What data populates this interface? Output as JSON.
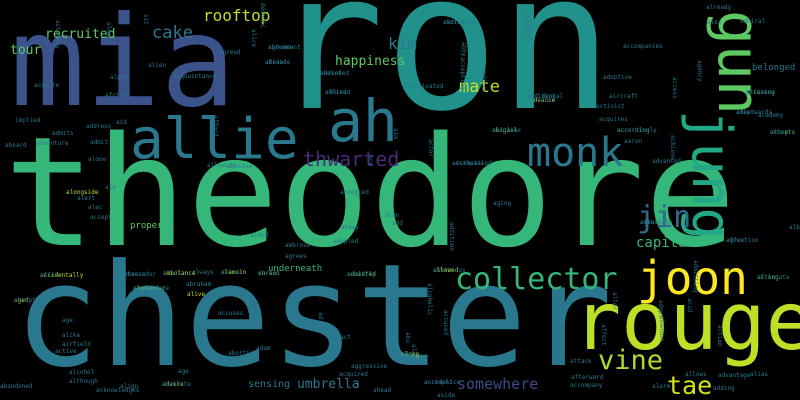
{
  "words": [
    {
      "text": "ron",
      "color": "#21918c",
      "tier": "xxl"
    },
    {
      "text": "theodore",
      "color": "#35b779",
      "tier": "xxl"
    },
    {
      "text": "chester",
      "color": "#2a788e",
      "tier": "xl"
    },
    {
      "text": "mia",
      "color": "#3b528b",
      "tier": "xl"
    },
    {
      "text": "rouge",
      "color": "#bddf26",
      "tier": "l"
    },
    {
      "text": "gun",
      "color": "#5ec962",
      "tier": "l"
    },
    {
      "text": "jung",
      "color": "#22a884",
      "tier": "l"
    },
    {
      "text": "allie",
      "color": "#2a788e",
      "tier": "l"
    },
    {
      "text": "ah",
      "color": "#2a788e",
      "tier": "l"
    },
    {
      "text": "monk",
      "color": "#2a788e",
      "tier": "m"
    },
    {
      "text": "joon",
      "color": "#fde725",
      "tier": "m"
    },
    {
      "text": "collector",
      "color": "#35b779",
      "tier": "m"
    },
    {
      "text": "jin",
      "color": "#31688e",
      "tier": "m"
    },
    {
      "text": "vine",
      "color": "#addc30",
      "tier": "m"
    },
    {
      "text": "tae",
      "color": "#d2e21b",
      "tier": "m"
    },
    {
      "text": "thwarted",
      "color": "#482878",
      "tier": "s"
    },
    {
      "text": "cake",
      "color": "#2a788e",
      "tier": "s"
    },
    {
      "text": "mate",
      "color": "#bddf26",
      "tier": "s"
    },
    {
      "text": "rooftop",
      "color": "#bddf26",
      "tier": "s"
    },
    {
      "text": "kim",
      "color": "#2a788e",
      "tier": "s"
    },
    {
      "text": "capital",
      "color": "#35b779",
      "tier": "s"
    },
    {
      "text": "recruited",
      "color": "#5ec962",
      "tier": "s"
    },
    {
      "text": "tour",
      "color": "#5ec962",
      "tier": "s"
    },
    {
      "text": "happiness",
      "color": "#5ec962",
      "tier": "s"
    },
    {
      "text": "somewhere",
      "color": "#3e4a89",
      "tier": "s"
    },
    {
      "text": "umbrella",
      "color": "#2a788e",
      "tier": "s"
    },
    {
      "text": "sensing",
      "color": "#2a788e",
      "tier": "xs"
    },
    {
      "text": "proper",
      "color": "#5ec962",
      "tier": "xs"
    },
    {
      "text": "underneath",
      "color": "#35b779",
      "tier": "xs"
    },
    {
      "text": "belonged",
      "color": "#2a788e",
      "tier": "xs"
    },
    {
      "text": "affection",
      "color": "#2a788e",
      "tier": "xxs"
    },
    {
      "text": "aftermath",
      "color": "#2a788e",
      "tier": "xxs"
    },
    {
      "text": "accusing",
      "color": "#35b779",
      "tier": "xxs"
    },
    {
      "text": "accepts",
      "color": "#5ec962",
      "tier": "xxs"
    },
    {
      "text": "afterwards",
      "color": "#2a788e",
      "tier": "xxs"
    },
    {
      "text": "advance",
      "color": "#b5de2b",
      "tier": "xxs"
    },
    {
      "text": "actress",
      "color": "#2a788e",
      "tier": "xxs"
    },
    {
      "text": "alexander",
      "color": "#5ec962",
      "tier": "xxs"
    },
    {
      "text": "accidentally",
      "color": "#bddf26",
      "tier": "xxs"
    },
    {
      "text": "admitted",
      "color": "#5ec962",
      "tier": "xxs"
    },
    {
      "text": "allowed",
      "color": "#bddf26",
      "tier": "xxs"
    },
    {
      "text": "acting",
      "color": "#5ec962",
      "tier": "xxs"
    },
    {
      "text": "ambulance",
      "color": "#bddf26",
      "tier": "xxs"
    },
    {
      "text": "alamein",
      "color": "#bddf26",
      "tier": "xxs"
    },
    {
      "text": "cursed",
      "color": "#bddf26",
      "tier": "xxs"
    },
    {
      "text": "advice",
      "color": "#bddf26",
      "tier": "xxs"
    },
    {
      "text": "aged",
      "color": "#bddf26",
      "tier": "xxs"
    },
    {
      "text": "along",
      "color": "#bddf26",
      "tier": "xxs"
    },
    {
      "text": "accident",
      "color": "#31688e",
      "tier": "xxs"
    },
    {
      "text": "according",
      "color": "#5ec962",
      "tier": "xxs"
    },
    {
      "text": "additional",
      "color": "#2a788e",
      "tier": "xxs"
    },
    {
      "text": "abigail",
      "color": "#5ec962",
      "tier": "xxs"
    },
    {
      "text": "accompanied",
      "color": "#2a788e",
      "tier": "xxs"
    },
    {
      "text": "aiming",
      "color": "#2a788e",
      "tier": "xxs"
    },
    {
      "text": "agreement",
      "color": "#2a788e",
      "tier": "xxs"
    },
    {
      "text": "absence",
      "color": "#2a788e",
      "tier": "xxs"
    },
    {
      "text": "abused",
      "color": "#2a788e",
      "tier": "xxs"
    },
    {
      "text": "alfred",
      "color": "#2a788e",
      "tier": "xxs"
    },
    {
      "text": "activated",
      "color": "#2a788e",
      "tier": "xxs"
    },
    {
      "text": "accompanies",
      "color": "#2a788e",
      "tier": "xxs"
    },
    {
      "text": "adoptive",
      "color": "#2a788e",
      "tier": "xxs"
    },
    {
      "text": "aircraft",
      "color": "#2a788e",
      "tier": "xxs"
    },
    {
      "text": "acquires",
      "color": "#2a788e",
      "tier": "xxs"
    },
    {
      "text": "activist",
      "color": "#2a788e",
      "tier": "xxs"
    },
    {
      "text": "aaron",
      "color": "#2a788e",
      "tier": "xxs"
    },
    {
      "text": "advanced",
      "color": "#2a788e",
      "tier": "xxs"
    },
    {
      "text": "alex",
      "color": "#2a788e",
      "tier": "xxs"
    },
    {
      "text": "admiral",
      "color": "#2a788e",
      "tier": "xxs"
    },
    {
      "text": "already",
      "color": "#2a788e",
      "tier": "xxs"
    },
    {
      "text": "academy",
      "color": "#2a788e",
      "tier": "xxs"
    },
    {
      "text": "albright",
      "color": "#2a788e",
      "tier": "xxs"
    },
    {
      "text": "alan",
      "color": "#2a788e",
      "tier": "xxs"
    },
    {
      "text": "abbey",
      "color": "#2a788e",
      "tier": "xxs"
    },
    {
      "text": "adopted",
      "color": "#2a788e",
      "tier": "xxs"
    },
    {
      "text": "ambrose",
      "color": "#2a788e",
      "tier": "xxs"
    },
    {
      "text": "agrees",
      "color": "#2a788e",
      "tier": "xxs"
    },
    {
      "text": "aided",
      "color": "#2a788e",
      "tier": "xxs"
    },
    {
      "text": "always",
      "color": "#2a788e",
      "tier": "xxs"
    },
    {
      "text": "abraham",
      "color": "#2a788e",
      "tier": "xxs"
    },
    {
      "text": "alive",
      "color": "#bddf26",
      "tier": "xxs"
    },
    {
      "text": "accuses",
      "color": "#2a788e",
      "tier": "xxs"
    },
    {
      "text": "abortion",
      "color": "#2a788e",
      "tier": "xxs"
    },
    {
      "text": "adam",
      "color": "#2a788e",
      "tier": "xxs"
    },
    {
      "text": "act",
      "color": "#2a788e",
      "tier": "xxs"
    },
    {
      "text": "aggressive",
      "color": "#2a788e",
      "tier": "xxs"
    },
    {
      "text": "acquired",
      "color": "#2a788e",
      "tier": "xxs"
    },
    {
      "text": "ahead",
      "color": "#2a788e",
      "tier": "xxs"
    },
    {
      "text": "align",
      "color": "#2a788e",
      "tier": "xxs"
    },
    {
      "text": "age",
      "color": "#2a788e",
      "tier": "xxs"
    },
    {
      "text": "abandoned",
      "color": "#2a788e",
      "tier": "xxs"
    },
    {
      "text": "although",
      "color": "#2a788e",
      "tier": "xxs"
    },
    {
      "text": "acknowledges",
      "color": "#2a788e",
      "tier": "xxs"
    },
    {
      "text": "alcohol",
      "color": "#2a788e",
      "tier": "xxs"
    },
    {
      "text": "aside",
      "color": "#2a788e",
      "tier": "xxs"
    },
    {
      "text": "allows",
      "color": "#2a788e",
      "tier": "xxs"
    },
    {
      "text": "advantage",
      "color": "#2a788e",
      "tier": "xxs"
    },
    {
      "text": "alias",
      "color": "#2a788e",
      "tier": "xxs"
    },
    {
      "text": "adding",
      "color": "#2a788e",
      "tier": "xxs"
    },
    {
      "text": "alarm",
      "color": "#2a788e",
      "tier": "xxs"
    },
    {
      "text": "accompany",
      "color": "#2a788e",
      "tier": "xxs"
    },
    {
      "text": "afterward",
      "color": "#2a788e",
      "tier": "xxs"
    },
    {
      "text": "attack",
      "color": "#2a788e",
      "tier": "xxs"
    },
    {
      "text": "implied",
      "color": "#2a788e",
      "tier": "xxs"
    },
    {
      "text": "acquire",
      "color": "#2a788e",
      "tier": "xxs"
    },
    {
      "text": "african",
      "color": "#2a788e",
      "tier": "xxs"
    },
    {
      "text": "aid",
      "color": "#2a788e",
      "tier": "xxs"
    },
    {
      "text": "address",
      "color": "#2a788e",
      "tier": "xxs"
    },
    {
      "text": "admits",
      "color": "#2a788e",
      "tier": "xxs"
    },
    {
      "text": "aboard",
      "color": "#2a788e",
      "tier": "xxs"
    },
    {
      "text": "adventure",
      "color": "#2a788e",
      "tier": "xxs"
    },
    {
      "text": "alone",
      "color": "#2a788e",
      "tier": "xxs"
    },
    {
      "text": "allowing",
      "color": "#2a788e",
      "tier": "xxs"
    },
    {
      "text": "abusive",
      "color": "#2a788e",
      "tier": "xxs"
    },
    {
      "text": "afford",
      "color": "#2a788e",
      "tier": "xxs"
    },
    {
      "text": "alpha",
      "color": "#2a788e",
      "tier": "xxs"
    },
    {
      "text": "acquaintance",
      "color": "#2a788e",
      "tier": "xxs"
    },
    {
      "text": "alien",
      "color": "#2a788e",
      "tier": "xxs"
    },
    {
      "text": "agreed",
      "color": "#2a788e",
      "tier": "xxs"
    },
    {
      "text": "alice",
      "color": "#2a788e",
      "tier": "xxs"
    },
    {
      "text": "demonic",
      "color": "#2a788e",
      "tier": "xxs"
    },
    {
      "text": "sit",
      "color": "#2a788e",
      "tier": "xxs"
    },
    {
      "text": "almost",
      "color": "#2a788e",
      "tier": "xxs"
    },
    {
      "text": "activity",
      "color": "#2a788e",
      "tier": "xxs"
    },
    {
      "text": "abby",
      "color": "#2a788e",
      "tier": "xxs"
    },
    {
      "text": "accepting",
      "color": "#2a788e",
      "tier": "xxs"
    },
    {
      "text": "addict",
      "color": "#2a788e",
      "tier": "xxs"
    },
    {
      "text": "ability",
      "color": "#2a788e",
      "tier": "xxs"
    },
    {
      "text": "agency",
      "color": "#2a788e",
      "tier": "xxs"
    },
    {
      "text": "access",
      "color": "#2a788e",
      "tier": "xxs"
    },
    {
      "text": "actor",
      "color": "#2a788e",
      "tier": "xxs"
    },
    {
      "text": "aim",
      "color": "#2a788e",
      "tier": "xxs"
    },
    {
      "text": "ace",
      "color": "#2a788e",
      "tier": "xxs"
    },
    {
      "text": "achieve",
      "color": "#2a788e",
      "tier": "xxs"
    },
    {
      "text": "admitting",
      "color": "#2a788e",
      "tier": "xxs"
    },
    {
      "text": "action",
      "color": "#2a788e",
      "tier": "xxs"
    },
    {
      "text": "acid",
      "color": "#2a788e",
      "tier": "xxs"
    },
    {
      "text": "adopt",
      "color": "#2a788e",
      "tier": "xxs"
    },
    {
      "text": "affect",
      "color": "#2a788e",
      "tier": "xxs"
    },
    {
      "text": "abandon",
      "color": "#2a788e",
      "tier": "xxs"
    },
    {
      "text": "alter",
      "color": "#2a788e",
      "tier": "xxs"
    },
    {
      "text": "abu",
      "color": "#2a788e",
      "tier": "xxs"
    },
    {
      "text": "ally",
      "color": "#2a788e",
      "tier": "xxs"
    },
    {
      "text": "ad",
      "color": "#2a788e",
      "tier": "xxs"
    },
    {
      "text": "alcoholic",
      "color": "#2a788e",
      "tier": "xxs"
    },
    {
      "text": "accused",
      "color": "#2a788e",
      "tier": "xxs"
    },
    {
      "text": "addition",
      "color": "#2a788e",
      "tier": "xxs"
    },
    {
      "text": "aging",
      "color": "#2a788e",
      "tier": "xxs"
    },
    {
      "text": "alley",
      "color": "#2a788e",
      "tier": "xxs"
    },
    {
      "text": "add",
      "color": "#2a788e",
      "tier": "xxs"
    },
    {
      "text": "age",
      "color": "#2a788e",
      "tier": "xxs"
    },
    {
      "text": "alike",
      "color": "#2a788e",
      "tier": "xxs"
    },
    {
      "text": "active",
      "color": "#2a788e",
      "tier": "xxs"
    },
    {
      "text": "airfield",
      "color": "#2a788e",
      "tier": "xxs"
    },
    {
      "text": "alongside",
      "color": "#bddf26",
      "tier": "xxs"
    },
    {
      "text": "alert",
      "color": "#2a788e",
      "tier": "xxs"
    },
    {
      "text": "ale",
      "color": "#2a788e",
      "tier": "xxs"
    },
    {
      "text": "admit",
      "color": "#2a788e",
      "tier": "xxs"
    },
    {
      "text": "alec",
      "color": "#2a788e",
      "tier": "xxs"
    },
    {
      "text": "accept",
      "color": "#2a788e",
      "tier": "xxs"
    },
    {
      "text": "accepted",
      "color": "#2a788e",
      "tier": "xxs"
    },
    {
      "text": "agree",
      "color": "#2a788e",
      "tier": "xxs"
    },
    {
      "text": "agent",
      "color": "#2a788e",
      "tier": "xxs"
    },
    {
      "text": "alliance",
      "color": "#2a788e",
      "tier": "xxs"
    },
    {
      "text": "albert",
      "color": "#2a788e",
      "tier": "xxs"
    },
    {
      "text": "adapt",
      "color": "#2a788e",
      "tier": "xxs"
    },
    {
      "text": "account",
      "color": "#2a788e",
      "tier": "xxs"
    },
    {
      "text": "ambassador",
      "color": "#2a788e",
      "tier": "xxs"
    },
    {
      "text": "acceptance",
      "color": "#2a788e",
      "tier": "xxs"
    },
    {
      "text": "affair",
      "color": "#2a788e",
      "tier": "xxs"
    },
    {
      "text": "actually",
      "color": "#2a788e",
      "tier": "xxs"
    },
    {
      "text": "ambitious",
      "color": "#2a788e",
      "tier": "xxs"
    },
    {
      "text": "alternate",
      "color": "#2a788e",
      "tier": "xxs"
    },
    {
      "text": "altar",
      "color": "#2a788e",
      "tier": "xxs"
    },
    {
      "text": "actual",
      "color": "#2a788e",
      "tier": "xxs"
    },
    {
      "text": "abroad",
      "color": "#2a788e",
      "tier": "xxs"
    },
    {
      "text": "absolute",
      "color": "#2a788e",
      "tier": "xxs"
    },
    {
      "text": "abruptly",
      "color": "#2a788e",
      "tier": "xxs"
    },
    {
      "text": "adult",
      "color": "#2a788e",
      "tier": "xxs"
    },
    {
      "text": "accomplice",
      "color": "#2a788e",
      "tier": "xxs"
    },
    {
      "text": "accordingly",
      "color": "#2a788e",
      "tier": "xxs"
    },
    {
      "text": "accident",
      "color": "#2a788e",
      "tier": "xxs"
    },
    {
      "text": "airplane",
      "color": "#2a788e",
      "tier": "xxs"
    },
    {
      "text": "aesthetic",
      "color": "#2a788e",
      "tier": "xxs"
    },
    {
      "text": "abilities",
      "color": "#2a788e",
      "tier": "xxs"
    },
    {
      "text": "abdomen",
      "color": "#2a788e",
      "tier": "xxs"
    },
    {
      "text": "afraid",
      "color": "#2a788e",
      "tier": "xxs"
    },
    {
      "text": "addicted",
      "color": "#2a788e",
      "tier": "xxs"
    },
    {
      "text": "admired",
      "color": "#2a788e",
      "tier": "xxs"
    }
  ]
}
